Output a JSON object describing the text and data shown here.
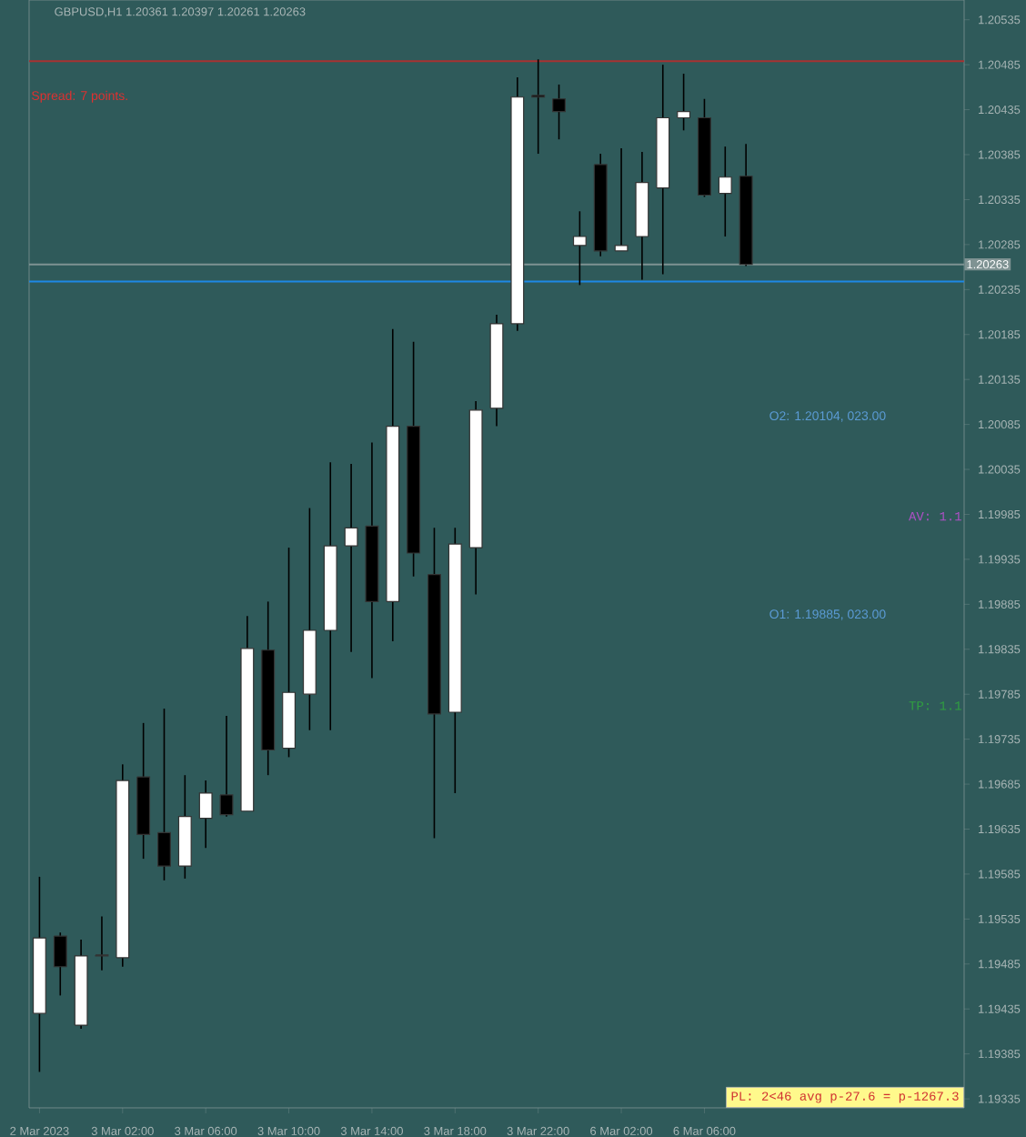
{
  "chart_data": {
    "type": "candlestick",
    "title": "GBPUSD,H1  1.20361 1.20397 1.20261 1.20263",
    "categories": [
      "2 Mar 2023",
      null,
      null,
      null,
      "3 Mar 02:00",
      null,
      null,
      null,
      "3 Mar 06:00",
      null,
      null,
      null,
      "3 Mar 10:00",
      null,
      null,
      null,
      "3 Mar 14:00",
      null,
      null,
      null,
      "3 Mar 18:00",
      null,
      null,
      null,
      "3 Mar 22:00",
      null,
      null,
      null,
      "6 Mar 02:00",
      null,
      null,
      null,
      "6 Mar 06:00",
      null,
      null,
      null,
      null,
      null,
      null,
      null,
      null,
      null,
      null,
      null,
      null
    ],
    "ohlc": [
      [
        1.1943,
        1.19582,
        1.19365,
        1.19514
      ],
      [
        1.19516,
        1.1952,
        1.1945,
        1.19482
      ],
      [
        1.19417,
        1.19512,
        1.19413,
        1.19494
      ],
      [
        1.19495,
        1.19538,
        1.19478,
        1.19494
      ],
      [
        1.19492,
        1.19707,
        1.19482,
        1.19689
      ],
      [
        1.19693,
        1.19753,
        1.19602,
        1.19629
      ],
      [
        1.19631,
        1.19769,
        1.19578,
        1.19594
      ],
      [
        1.19594,
        1.19695,
        1.1958,
        1.19649
      ],
      [
        1.19647,
        1.19689,
        1.19614,
        1.19675
      ],
      [
        1.19673,
        1.19761,
        1.19649,
        1.19651
      ],
      [
        1.19655,
        1.19872,
        1.19655,
        1.19836
      ],
      [
        1.19834,
        1.19888,
        1.19695,
        1.19723
      ],
      [
        1.19725,
        1.19948,
        1.19715,
        1.19787
      ],
      [
        1.19785,
        1.19992,
        1.19745,
        1.19856
      ],
      [
        1.19856,
        1.20043,
        1.19745,
        1.1995
      ],
      [
        1.1995,
        1.20041,
        1.19832,
        1.1997
      ],
      [
        1.19972,
        1.20065,
        1.19803,
        1.19888
      ],
      [
        1.19888,
        1.20191,
        1.19844,
        1.20083
      ],
      [
        1.20083,
        1.20177,
        1.19916,
        1.19942
      ],
      [
        1.19918,
        1.1997,
        1.19625,
        1.19763
      ],
      [
        1.19765,
        1.1997,
        1.19675,
        1.19952
      ],
      [
        1.19948,
        1.20111,
        1.19896,
        1.20101
      ],
      [
        1.20103,
        1.20207,
        1.20083,
        1.20197
      ],
      [
        1.20197,
        1.20471,
        1.20189,
        1.20449
      ],
      [
        1.20451,
        1.20491,
        1.20386,
        1.20449
      ],
      [
        1.20447,
        1.20463,
        1.20402,
        1.20433
      ],
      [
        1.20284,
        1.20322,
        1.2024,
        1.20294
      ],
      [
        1.20374,
        1.20386,
        1.20272,
        1.20278
      ],
      [
        1.20278,
        1.20392,
        1.20278,
        1.20284
      ],
      [
        1.20294,
        1.20388,
        1.20246,
        1.20354
      ],
      [
        1.20348,
        1.20485,
        1.20252,
        1.20426
      ],
      [
        1.20426,
        1.20475,
        1.20412,
        1.20433
      ],
      [
        1.20426,
        1.20447,
        1.20338,
        1.2034
      ],
      [
        1.20342,
        1.20394,
        1.20294,
        1.2036
      ],
      [
        1.20361,
        1.20397,
        1.20261,
        1.20263
      ],
      null,
      null,
      null,
      null,
      null,
      null,
      null,
      null,
      null,
      null
    ],
    "ylim": [
      1.19325,
      1.20557
    ],
    "yticks": [
      1.20535,
      1.20485,
      1.20435,
      1.20385,
      1.20335,
      1.20285,
      1.20235,
      1.20185,
      1.20135,
      1.20085,
      1.20035,
      1.19985,
      1.19935,
      1.19885,
      1.19835,
      1.19785,
      1.19735,
      1.19685,
      1.19635,
      1.19585,
      1.19535,
      1.19485,
      1.19435,
      1.19385,
      1.19335
    ],
    "ref_lines": [
      {
        "axis": "y",
        "value": 1.20489,
        "color": "#a83232"
      },
      {
        "axis": "y",
        "value": 1.20244,
        "color": "#1e88e5"
      },
      {
        "axis": "y",
        "value": 1.20263,
        "label": "1.20263",
        "color": "#7f9393"
      }
    ],
    "annotations": [
      "Spread: 7 points.",
      "O2: 1.20104, 023.00",
      "AV: 1.1",
      "O1: 1.19885, 023.00",
      "TP: 1.1",
      "PL: 2<46 avg p-27.6 = p-1267.3"
    ]
  }
}
